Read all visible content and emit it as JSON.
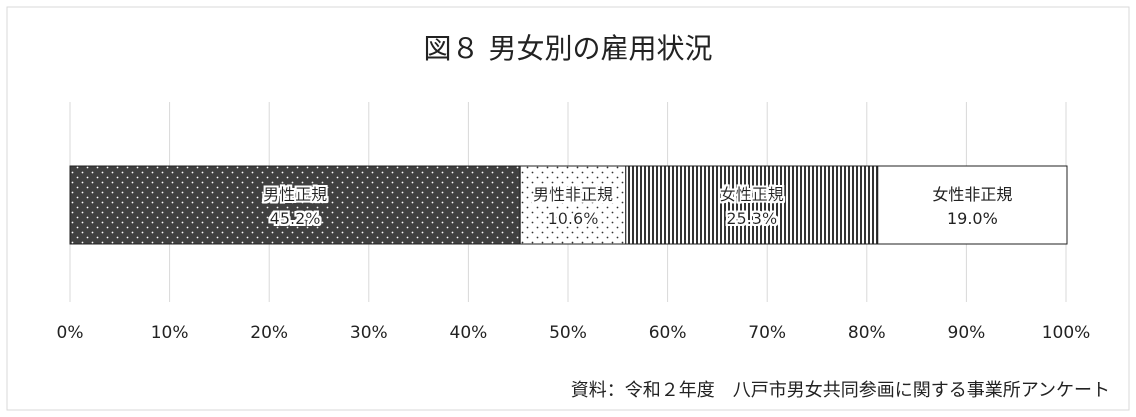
{
  "chart_data": {
    "type": "bar",
    "orientation": "horizontal",
    "stacked": "100%",
    "title": "図８ 男女別の雇用状況",
    "source": "資料：令和２年度　八戸市男女共同参画に関する事業所アンケート",
    "xlim": [
      0,
      100
    ],
    "x_ticks": [
      "0%",
      "10%",
      "20%",
      "30%",
      "40%",
      "50%",
      "60%",
      "70%",
      "80%",
      "90%",
      "100%"
    ],
    "grid": true,
    "legend": "none",
    "series": [
      {
        "name": "男性正規",
        "value": 45.2,
        "label": "45.2%",
        "pattern": "dots-on-dark",
        "color": "#404040"
      },
      {
        "name": "男性非正規",
        "value": 10.6,
        "label": "10.6%",
        "pattern": "sparse-dots",
        "color": "#ffffff"
      },
      {
        "name": "女性正規",
        "value": 25.3,
        "label": "25.3%",
        "pattern": "vertical-stripes",
        "color": "#333333"
      },
      {
        "name": "女性非正規",
        "value": 19.0,
        "label": "19.0%",
        "pattern": "none",
        "color": "#ffffff"
      }
    ]
  }
}
